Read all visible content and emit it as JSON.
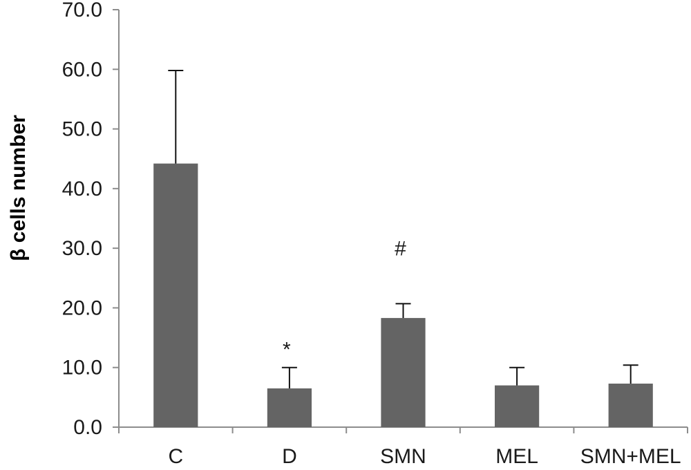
{
  "chart_data": {
    "type": "bar",
    "ylabel": "β cells number",
    "categories": [
      "C",
      "D",
      "SMN",
      "MEL",
      "SMN+MEL"
    ],
    "series": [
      {
        "values": [
          44.2,
          6.5,
          18.3,
          7.0,
          7.3
        ],
        "error": [
          15.6,
          3.5,
          2.4,
          3.0,
          3.1
        ]
      }
    ],
    "annotations": [
      "",
      "*",
      "#",
      "",
      ""
    ],
    "ylim": [
      0,
      70
    ],
    "ytick_values": [
      0,
      10,
      20,
      30,
      40,
      50,
      60,
      70
    ],
    "ytick_labels": [
      "0.0",
      "10.0",
      "20.0",
      "30.0",
      "40.0",
      "50.0",
      "60.0",
      "70.0"
    ],
    "grid": false,
    "colors": {
      "bar": "#646464",
      "axis": "#8c8c8c",
      "error": "#111111"
    }
  }
}
